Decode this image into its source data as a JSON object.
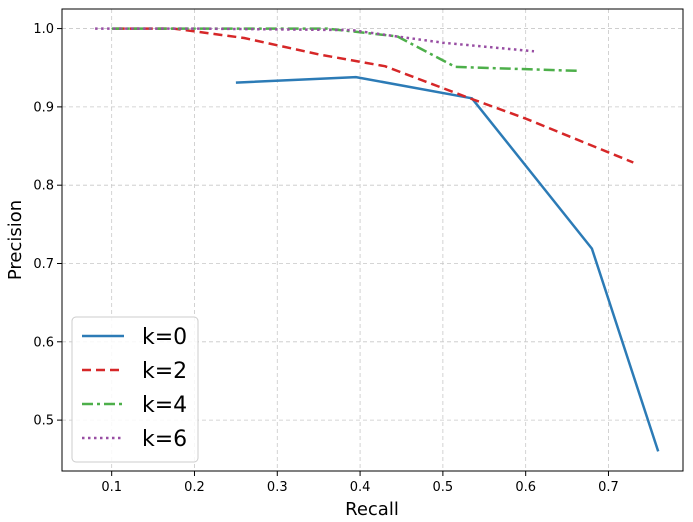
{
  "chart_data": {
    "type": "line",
    "title": "",
    "xlabel": "Recall",
    "ylabel": "Precision",
    "xlim": [
      0.04,
      0.79
    ],
    "ylim": [
      0.435,
      1.025
    ],
    "xticks": [
      0.1,
      0.2,
      0.3,
      0.4,
      0.5,
      0.6,
      0.7
    ],
    "xtick_labels": [
      "0.1",
      "0.2",
      "0.3",
      "0.4",
      "0.5",
      "0.6",
      "0.7"
    ],
    "yticks": [
      0.5,
      0.6,
      0.7,
      0.8,
      0.9,
      1.0
    ],
    "ytick_labels": [
      "0.5",
      "0.6",
      "0.7",
      "0.8",
      "0.9",
      "1.0"
    ],
    "grid": true,
    "legend_position": "lower-left",
    "series": [
      {
        "name": "k=0",
        "color": "#2c7bb6",
        "style": "solid",
        "x": [
          0.25,
          0.395,
          0.535,
          0.68,
          0.76
        ],
        "y": [
          0.931,
          0.938,
          0.911,
          0.719,
          0.46
        ]
      },
      {
        "name": "k=2",
        "color": "#d62728",
        "style": "dashed",
        "x": [
          0.105,
          0.175,
          0.26,
          0.35,
          0.43,
          0.53,
          0.6,
          0.73
        ],
        "y": [
          1.0,
          1.0,
          0.988,
          0.967,
          0.952,
          0.912,
          0.885,
          0.829
        ]
      },
      {
        "name": "k=4",
        "color": "#4daf4a",
        "style": "dashdot",
        "x": [
          0.1,
          0.2,
          0.36,
          0.445,
          0.515,
          0.665
        ],
        "y": [
          1.0,
          1.0,
          1.0,
          0.99,
          0.951,
          0.946
        ]
      },
      {
        "name": "k=6",
        "color": "#984ea3",
        "style": "dotted",
        "x": [
          0.08,
          0.2,
          0.39,
          0.43,
          0.5,
          0.61
        ],
        "y": [
          1.0,
          1.0,
          0.998,
          0.992,
          0.982,
          0.971
        ]
      }
    ]
  }
}
